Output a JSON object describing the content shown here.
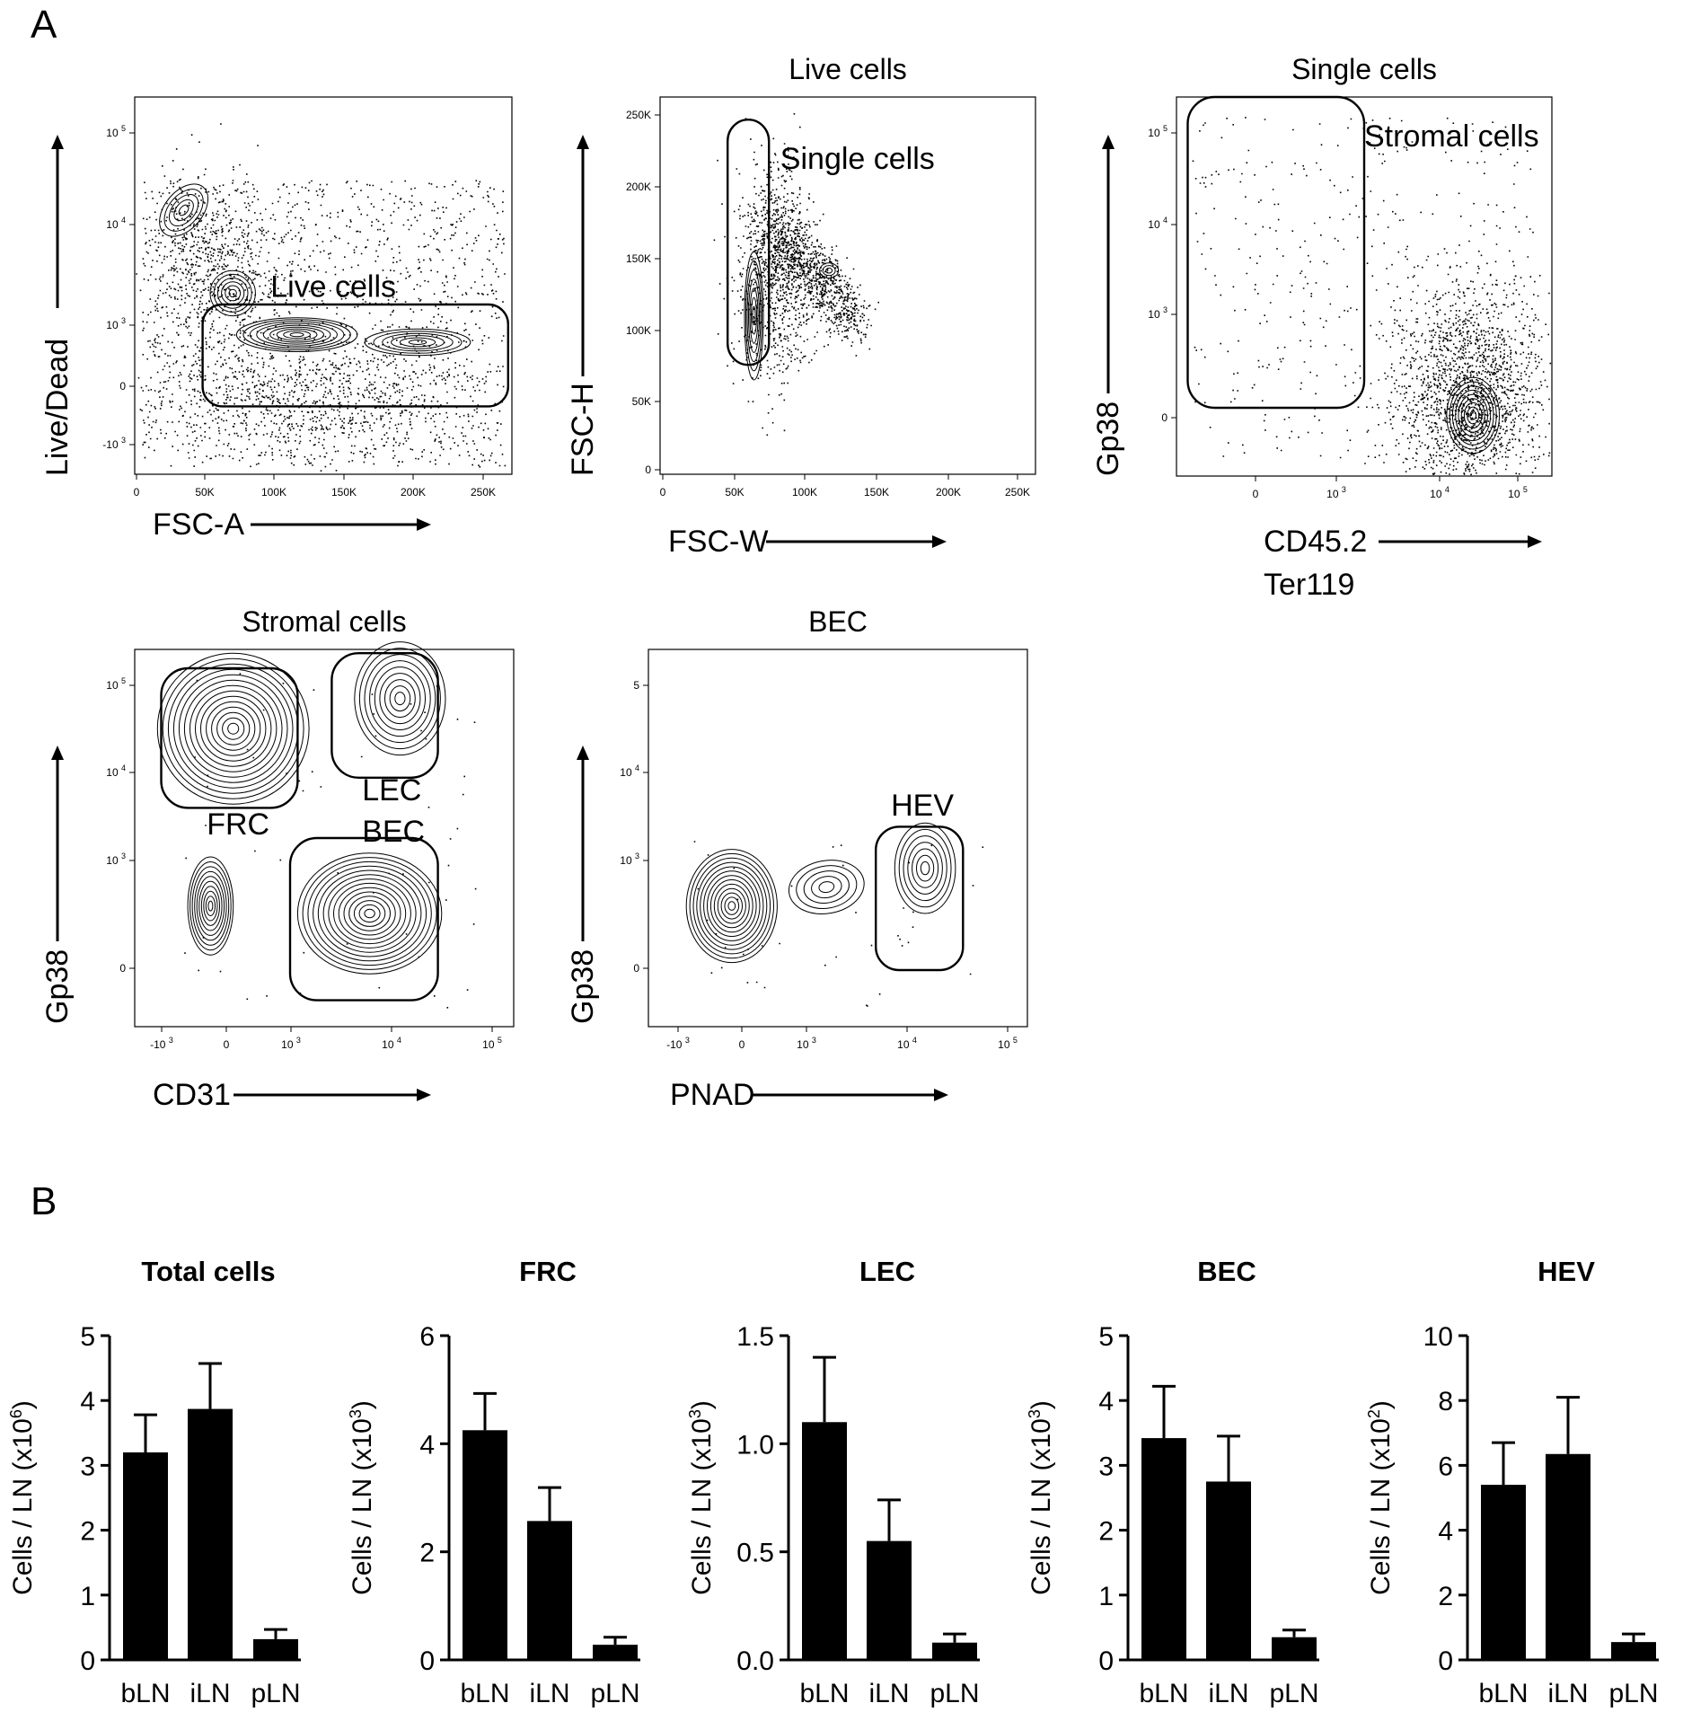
{
  "panel_labels": {
    "a": "A",
    "b": "B"
  },
  "flow_plots": [
    {
      "title": "",
      "xlabel": "FSC-A",
      "xlabel2": "",
      "ylabel": "Live/Dead",
      "xticks": [
        "0",
        "50K",
        "100K",
        "150K",
        "200K",
        "250K"
      ],
      "yticks": [
        "10^5",
        "10^4",
        "10^3",
        "0",
        "-10^3"
      ],
      "gates": [
        {
          "label": "Live cells"
        }
      ]
    },
    {
      "title": "Live cells",
      "xlabel": "FSC-W",
      "xlabel2": "",
      "ylabel": "FSC-H",
      "xticks": [
        "0",
        "50K",
        "100K",
        "150K",
        "200K",
        "250K"
      ],
      "yticks": [
        "250K",
        "200K",
        "150K",
        "100K",
        "50K",
        "0"
      ],
      "gates": [
        {
          "label": "Single cells"
        }
      ]
    },
    {
      "title": "Single cells",
      "xlabel": "CD45.2",
      "xlabel2": "Ter119",
      "ylabel": "Gp38",
      "xticks": [
        "0",
        "10^3",
        "10^4",
        "10^5"
      ],
      "yticks": [
        "10^5",
        "10^4",
        "10^3",
        "0"
      ],
      "gates": [
        {
          "label": "Stromal cells"
        }
      ]
    },
    {
      "title": "Stromal cells",
      "xlabel": "CD31",
      "xlabel2": "",
      "ylabel": "Gp38",
      "xticks": [
        "-10^3",
        "0",
        "10^3",
        "10^4",
        "10^5"
      ],
      "yticks": [
        "10^5",
        "10^4",
        "10^3",
        "0"
      ],
      "gates": [
        {
          "label": "FRC"
        },
        {
          "label": "LEC"
        },
        {
          "label": "BEC"
        }
      ]
    },
    {
      "title": "BEC",
      "xlabel": "PNAD",
      "xlabel2": "",
      "ylabel": "Gp38",
      "xticks": [
        "-10^3",
        "0",
        "10^3",
        "10^4",
        "10^5"
      ],
      "yticks": [
        "5",
        "10^4",
        "10^3",
        "0"
      ],
      "gates": [
        {
          "label": "HEV"
        }
      ]
    }
  ],
  "chart_data": [
    {
      "type": "bar",
      "title": "Total cells",
      "ylabel": "Cells / LN (x10^6)",
      "categories": [
        "bLN",
        "iLN",
        "pLN"
      ],
      "values": [
        3.2,
        3.87,
        0.32
      ],
      "errors": [
        0.58,
        0.7,
        0.15
      ],
      "ylim": [
        0,
        5
      ],
      "yticks": [
        0,
        1,
        2,
        3,
        4,
        5
      ],
      "ytick_labels": [
        "0",
        "1",
        "2",
        "3",
        "4",
        "5"
      ]
    },
    {
      "type": "bar",
      "title": "FRC",
      "ylabel": "Cells / LN (x10^3)",
      "categories": [
        "bLN",
        "iLN",
        "pLN"
      ],
      "values": [
        4.25,
        2.57,
        0.28
      ],
      "errors": [
        0.68,
        0.62,
        0.14
      ],
      "ylim": [
        0,
        6
      ],
      "yticks": [
        0,
        2,
        4,
        6
      ],
      "ytick_labels": [
        "0",
        "2",
        "4",
        "6"
      ]
    },
    {
      "type": "bar",
      "title": "LEC",
      "ylabel": "Cells / LN (x10^3)",
      "categories": [
        "bLN",
        "iLN",
        "pLN"
      ],
      "values": [
        1.1,
        0.55,
        0.08
      ],
      "errors": [
        0.3,
        0.19,
        0.04
      ],
      "ylim": [
        0,
        1.5
      ],
      "yticks": [
        0,
        0.5,
        1.0,
        1.5
      ],
      "ytick_labels": [
        "0.0",
        "0.5",
        "1.0",
        "1.5"
      ]
    },
    {
      "type": "bar",
      "title": "BEC",
      "ylabel": "Cells / LN (x10^3)",
      "categories": [
        "bLN",
        "iLN",
        "pLN"
      ],
      "values": [
        3.42,
        2.75,
        0.35
      ],
      "errors": [
        0.8,
        0.7,
        0.11
      ],
      "ylim": [
        0,
        5
      ],
      "yticks": [
        0,
        1,
        2,
        3,
        4,
        5
      ],
      "ytick_labels": [
        "0",
        "1",
        "2",
        "3",
        "4",
        "5"
      ]
    },
    {
      "type": "bar",
      "title": "HEV",
      "ylabel": "Cells / LN (x10^2)",
      "categories": [
        "bLN",
        "iLN",
        "pLN"
      ],
      "values": [
        5.4,
        6.35,
        0.55
      ],
      "errors": [
        1.3,
        1.75,
        0.25
      ],
      "ylim": [
        0,
        10
      ],
      "yticks": [
        0,
        2,
        4,
        6,
        8,
        10
      ],
      "ytick_labels": [
        "0",
        "2",
        "4",
        "6",
        "8",
        "10"
      ]
    }
  ]
}
